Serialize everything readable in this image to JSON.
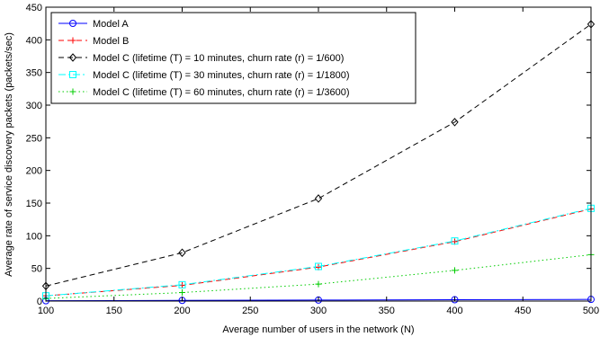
{
  "chart_data": {
    "type": "line",
    "title": "",
    "xlabel": "Average number of users in the network (N)",
    "ylabel": "Average rate of service discovery packets (packets/sec)",
    "xlim": [
      100,
      500
    ],
    "ylim": [
      0,
      450
    ],
    "x_ticks": [
      100,
      150,
      200,
      250,
      300,
      350,
      400,
      450,
      500
    ],
    "y_ticks": [
      0,
      50,
      100,
      150,
      200,
      250,
      300,
      350,
      400,
      450
    ],
    "grid": false,
    "legend_position": "top-left",
    "x": [
      100,
      200,
      300,
      400,
      500
    ],
    "series": [
      {
        "name": "Model A",
        "values": [
          0.5,
          1,
          1.5,
          2,
          2.5
        ],
        "color": "#0000ff",
        "line": "solid",
        "marker": "circle"
      },
      {
        "name": "Model B",
        "values": [
          8,
          24,
          52,
          91,
          141
        ],
        "color": "#ff0000",
        "line": "dashed",
        "marker": "plus"
      },
      {
        "name": "Model C (lifetime (T) = 10 minutes, churn rate (r) = 1/600)",
        "values": [
          23,
          74,
          157,
          274,
          424
        ],
        "color": "#000000",
        "line": "dashed",
        "marker": "diamond"
      },
      {
        "name": "Model C (lifetime (T) = 30 minutes, churn rate (r) = 1/1800)",
        "values": [
          8,
          25,
          53,
          92,
          142
        ],
        "color": "#00ffff",
        "line": "dashdot",
        "marker": "square"
      },
      {
        "name": "Model C (lifetime (T) = 60 minutes, churn rate (r) = 1/3600)",
        "values": [
          4,
          13,
          26,
          47,
          71
        ],
        "color": "#00cc00",
        "line": "dotted",
        "marker": "plus"
      }
    ]
  }
}
